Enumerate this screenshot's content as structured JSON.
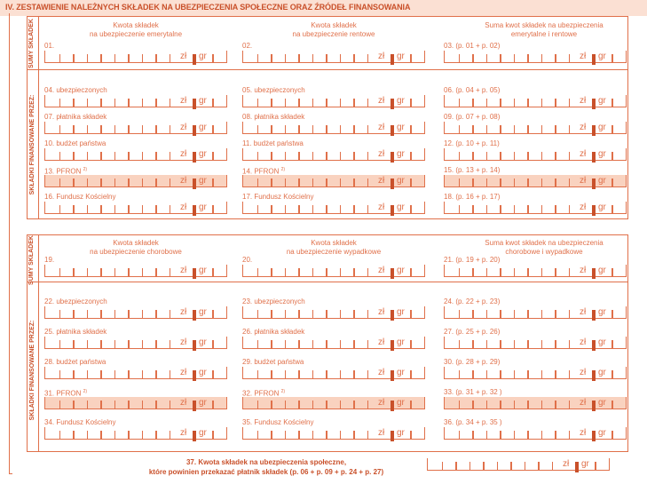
{
  "section_title": "IV. ZESTAWIENIE NALEŻNYCH SKŁADEK NA UBEZPIECZENIA SPOŁECZNE ORAZ ŹRÓDEŁ FINANSOWANIA",
  "side_labels": {
    "sumy": "SUMY SKŁADEK",
    "finansowane": "SKŁADKI FINANSOWANE PRZEZ:"
  },
  "currency": {
    "zl": "zł",
    "gr": "gr"
  },
  "block1": {
    "col_heads": [
      "Kwota składek\nna ubezpieczenie emerytalne",
      "Kwota składek\nna ubezpieczenie rentowe",
      "Suma kwot składek na ubezpieczenia\nemerytalne i rentowe"
    ],
    "sum_row": [
      "01.",
      "02.",
      "03. (p. 01 + p. 02)"
    ],
    "rows": [
      [
        "04. ubezpieczonych",
        "05. ubezpieczonych",
        "06. (p. 04 + p. 05)"
      ],
      [
        "07. płatnika składek",
        "08. płatnika składek",
        "09. (p. 07 + p. 08)"
      ],
      [
        "10. budżet państwa",
        "11. budżet państwa",
        "12. (p. 10 + p. 11)"
      ],
      [
        "13. PFRON",
        "14. PFRON",
        "15. (p. 13 + p. 14)"
      ],
      [
        "16. Fundusz Kościelny",
        "17. Fundusz Kościelny",
        "18. (p. 16 + p. 17)"
      ]
    ],
    "pfron_sup": "2)"
  },
  "block2": {
    "col_heads": [
      "Kwota składek\nna ubezpieczenie chorobowe",
      "Kwota składek\nna ubezpieczenie wypadkowe",
      "Suma kwot składek na ubezpieczenia\nchorobowe i wypadkowe"
    ],
    "sum_row": [
      "19.",
      "20.",
      "21. (p. 19 + p. 20)"
    ],
    "rows": [
      [
        "22. ubezpieczonych",
        "23. ubezpieczonych",
        "24. (p. 22 + p. 23)"
      ],
      [
        "25. płatnika składek",
        "26. płatnika składek",
        "27. (p. 25 + p. 26)"
      ],
      [
        "28. budżet państwa",
        "29. budżet państwa",
        "30. (p. 28 + p. 29)"
      ],
      [
        "31. PFRON",
        "32. PFRON",
        "33. (p. 31 + p. 32 )"
      ],
      [
        "34. Fundusz Kościelny",
        "35. Fundusz Kościelny",
        "36. (p. 34 + p. 35 )"
      ]
    ],
    "pfron_sup": "2)"
  },
  "total": {
    "number": "37.",
    "line1": "Kwota składek na ubezpieczenia społeczne,",
    "line2": "które powinien przekazać płatnik składek (p. 06 + p. 09 + p. 24 + p. 27)"
  },
  "colors": {
    "line": "#e0704a",
    "dark": "#c9502a",
    "header_bg": "#fbe0d3",
    "shade": "#f9d2bf"
  }
}
